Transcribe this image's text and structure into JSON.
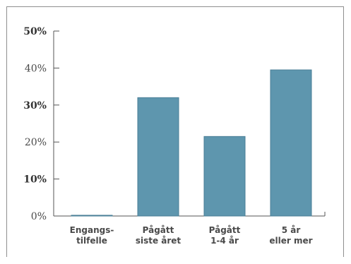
{
  "chart_data": {
    "type": "bar",
    "categories": [
      [
        "Engangs-",
        "tilfelle"
      ],
      [
        "Pågått",
        "siste året"
      ],
      [
        "Pågått",
        "1-4 år"
      ],
      [
        "5 år",
        "eller mer"
      ]
    ],
    "values": [
      0.2,
      32,
      21.5,
      39.5
    ],
    "ylim": [
      0,
      50
    ],
    "yticks": [
      {
        "label": "0%",
        "value": 0,
        "bold": false
      },
      {
        "label": "10%",
        "value": 10,
        "bold": true
      },
      {
        "label": "20%",
        "value": 20,
        "bold": false
      },
      {
        "label": "30%",
        "value": 30,
        "bold": true
      },
      {
        "label": "40%",
        "value": 40,
        "bold": false
      },
      {
        "label": "50%",
        "value": 50,
        "bold": true
      }
    ],
    "bar_color": "#5e96ae",
    "bar_stroke": "#4a7f97",
    "axis_color": "#555555",
    "grid": false,
    "title": "",
    "xlabel": "",
    "ylabel": ""
  }
}
